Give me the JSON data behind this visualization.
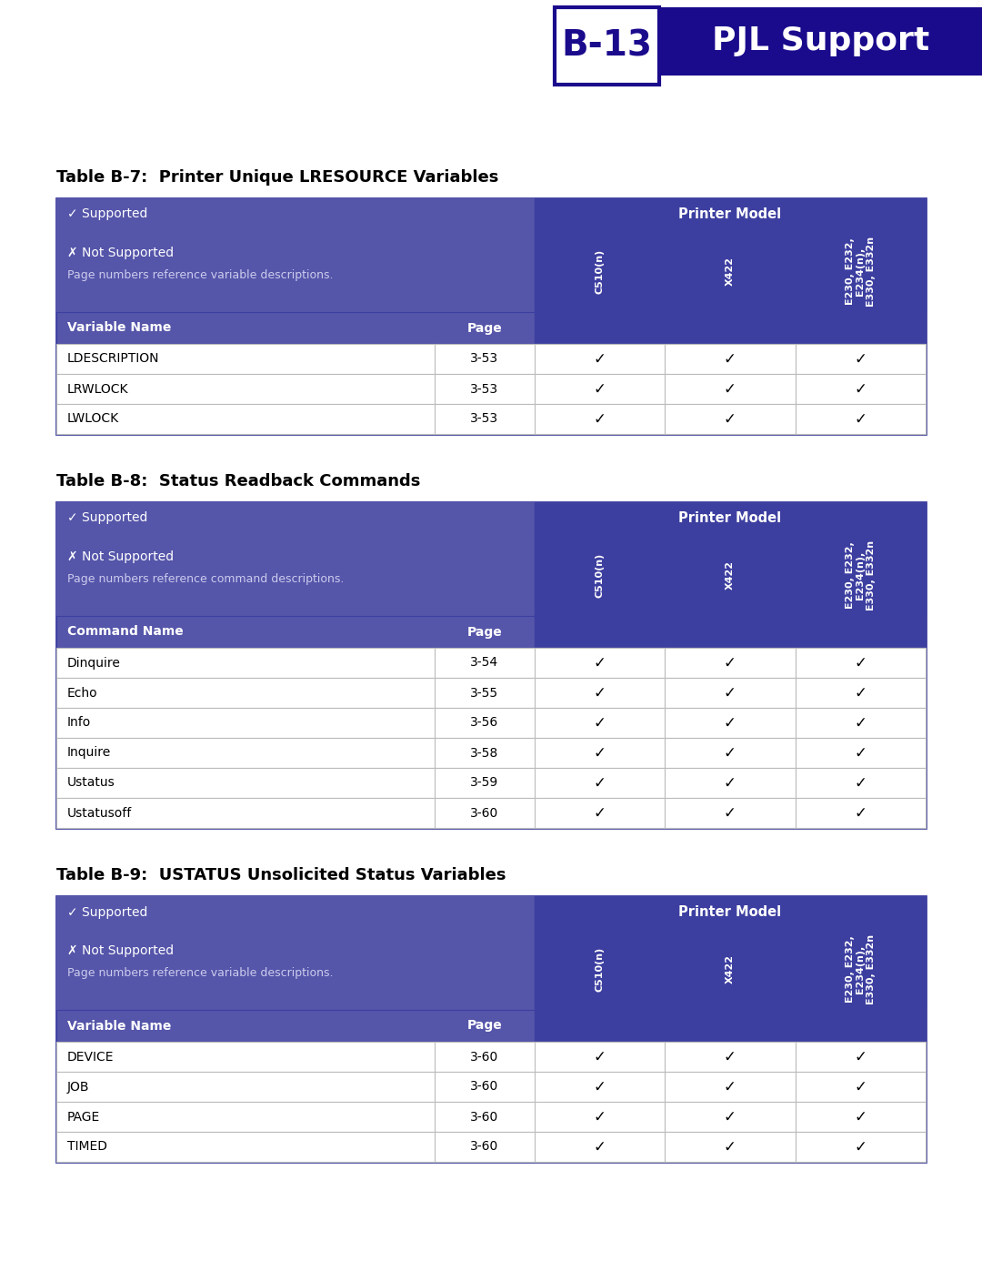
{
  "page_header": {
    "label": "B-13",
    "title": "PJL Support",
    "label_bg": "#ffffff",
    "label_color": "#1a0a8c",
    "title_bg": "#1a0a8c",
    "title_color": "#ffffff",
    "border_color": "#1a0a8c"
  },
  "table_b7": {
    "title": "Table B-7:  Printer Unique LRESOURCE Variables",
    "header_bg": "#5555aa",
    "header_dark_bg": "#3d3fa0",
    "supported_text": "✓ Supported",
    "not_supported_text": "✗ Not Supported",
    "page_ref_text": "Page numbers reference variable descriptions.",
    "printer_model_text": "Printer Model",
    "col1_label": "Variable Name",
    "col2_label": "Page",
    "col3_label": "C510(n)",
    "col4_label": "X422",
    "col5_label": "E230, E232,\nE234(n),\nE330, E332n",
    "rows": [
      [
        "LDESCRIPTION",
        "3-53",
        "✓",
        "✓",
        "✓"
      ],
      [
        "LRWLOCK",
        "3-53",
        "✓",
        "✓",
        "✓"
      ],
      [
        "LWLOCK",
        "3-53",
        "✓",
        "✓",
        "✓"
      ]
    ]
  },
  "table_b8": {
    "title": "Table B-8:  Status Readback Commands",
    "header_bg": "#5555aa",
    "header_dark_bg": "#3d3fa0",
    "supported_text": "✓ Supported",
    "not_supported_text": "✗ Not Supported",
    "page_ref_text": "Page numbers reference command descriptions.",
    "printer_model_text": "Printer Model",
    "col1_label": "Command Name",
    "col2_label": "Page",
    "col3_label": "C510(n)",
    "col4_label": "X422",
    "col5_label": "E230, E232,\nE234(n),\nE330, E332n",
    "rows": [
      [
        "Dinquire",
        "3-54",
        "✓",
        "✓",
        "✓"
      ],
      [
        "Echo",
        "3-55",
        "✓",
        "✓",
        "✓"
      ],
      [
        "Info",
        "3-56",
        "✓",
        "✓",
        "✓"
      ],
      [
        "Inquire",
        "3-58",
        "✓",
        "✓",
        "✓"
      ],
      [
        "Ustatus",
        "3-59",
        "✓",
        "✓",
        "✓"
      ],
      [
        "Ustatusoff",
        "3-60",
        "✓",
        "✓",
        "✓"
      ]
    ]
  },
  "table_b9": {
    "title": "Table B-9:  USTATUS Unsolicited Status Variables",
    "header_bg": "#5555aa",
    "header_dark_bg": "#3d3fa0",
    "supported_text": "✓ Supported",
    "not_supported_text": "✗ Not Supported",
    "page_ref_text": "Page numbers reference variable descriptions.",
    "printer_model_text": "Printer Model",
    "col1_label": "Variable Name",
    "col2_label": "Page",
    "col3_label": "C510(n)",
    "col4_label": "X422",
    "col5_label": "E230, E232,\nE234(n),\nE330, E332n",
    "rows": [
      [
        "DEVICE",
        "3-60",
        "✓",
        "✓",
        "✓"
      ],
      [
        "JOB",
        "3-60",
        "✓",
        "✓",
        "✓"
      ],
      [
        "PAGE",
        "3-60",
        "✓",
        "✓",
        "✓"
      ],
      [
        "TIMED",
        "3-60",
        "✓",
        "✓",
        "✓"
      ]
    ]
  },
  "bg_color": "#ffffff",
  "border_color": "#3d3fa0",
  "row_line_color": "#bbbbbb",
  "text_color_dark": "#000000",
  "text_color_white": "#ffffff"
}
